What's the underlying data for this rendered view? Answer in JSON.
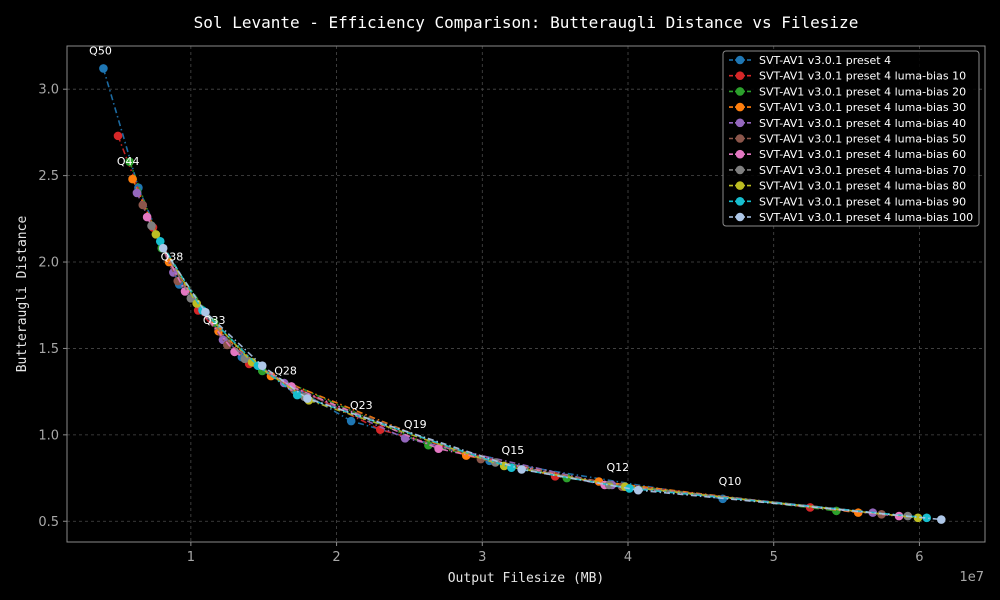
{
  "chart_data": {
    "type": "line",
    "title": "Sol Levante - Efficiency Comparison: Butteraugli Distance vs Filesize",
    "xlabel": "Output Filesize (MB)",
    "ylabel": "Butteraugli Distance",
    "x_scale_label": "1e7",
    "xlim": [
      1500000,
      64500000
    ],
    "ylim": [
      0.38,
      3.25
    ],
    "x_ticks": [
      10000000,
      20000000,
      30000000,
      40000000,
      50000000,
      60000000
    ],
    "x_tick_labels": [
      "1",
      "2",
      "3",
      "4",
      "5",
      "6"
    ],
    "y_ticks": [
      0.5,
      1.0,
      1.5,
      2.0,
      2.5,
      3.0
    ],
    "y_tick_labels": [
      "0.5",
      "1.0",
      "1.5",
      "2.0",
      "2.5",
      "3.0"
    ],
    "grid": true,
    "legend_position": "top-right",
    "series": [
      {
        "name": "SVT-AV1 v3.0.1 preset 4",
        "color": "#1f77b4",
        "x": [
          4000000,
          6400000,
          9200000,
          13500000,
          21000000,
          30500000,
          46500000
        ],
        "y": [
          3.12,
          2.43,
          1.87,
          1.45,
          1.08,
          0.85,
          0.63
        ]
      },
      {
        "name": "SVT-AV1 v3.0.1 preset 4 luma-bias 10",
        "color": "#d62728",
        "x": [
          5000000,
          7400000,
          10500000,
          14000000,
          23000000,
          35000000,
          52500000
        ],
        "y": [
          2.73,
          2.2,
          1.72,
          1.41,
          1.03,
          0.76,
          0.58
        ]
      },
      {
        "name": "SVT-AV1 v3.0.1 preset 4 luma-bias 20",
        "color": "#2ca02c",
        "x": [
          5800000,
          8000000,
          11600000,
          14900000,
          26300000,
          35800000,
          54300000
        ],
        "y": [
          2.58,
          2.08,
          1.65,
          1.37,
          0.94,
          0.75,
          0.56
        ]
      },
      {
        "name": "SVT-AV1 v3.0.1 preset 4 luma-bias 30",
        "color": "#ff7f0e",
        "x": [
          6000000,
          8500000,
          11900000,
          15500000,
          28900000,
          38000000,
          55800000
        ],
        "y": [
          2.48,
          2.0,
          1.6,
          1.34,
          0.88,
          0.73,
          0.55
        ]
      },
      {
        "name": "SVT-AV1 v3.0.1 preset 4 luma-bias 40",
        "color": "#9467bd",
        "x": [
          6300000,
          8800000,
          12200000,
          16400000,
          24700000,
          38900000,
          56800000
        ],
        "y": [
          2.4,
          1.94,
          1.55,
          1.3,
          0.98,
          0.71,
          0.55
        ]
      },
      {
        "name": "SVT-AV1 v3.0.1 preset 4 luma-bias 50",
        "color": "#8c564b",
        "x": [
          6700000,
          9100000,
          12500000,
          17100000,
          29900000,
          39600000,
          57400000
        ],
        "y": [
          2.33,
          1.89,
          1.52,
          1.26,
          0.86,
          0.7,
          0.54
        ]
      },
      {
        "name": "SVT-AV1 v3.0.1 preset 4 luma-bias 60",
        "color": "#e377c2",
        "x": [
          7000000,
          9600000,
          13000000,
          16900000,
          27000000,
          38400000,
          58600000
        ],
        "y": [
          2.26,
          1.83,
          1.48,
          1.28,
          0.92,
          0.71,
          0.53
        ]
      },
      {
        "name": "SVT-AV1 v3.0.1 preset 4 luma-bias 70",
        "color": "#7f7f7f",
        "x": [
          7300000,
          10000000,
          13700000,
          17800000,
          30900000,
          38700000,
          59200000
        ],
        "y": [
          2.21,
          1.79,
          1.44,
          1.22,
          0.84,
          0.71,
          0.53
        ]
      },
      {
        "name": "SVT-AV1 v3.0.1 preset 4 luma-bias 80",
        "color": "#bcbd22",
        "x": [
          7600000,
          10400000,
          14200000,
          18100000,
          31500000,
          39800000,
          59900000
        ],
        "y": [
          2.16,
          1.76,
          1.42,
          1.2,
          0.82,
          0.7,
          0.52
        ]
      },
      {
        "name": "SVT-AV1 v3.0.1 preset 4 luma-bias 90",
        "color": "#17becf",
        "x": [
          7900000,
          10800000,
          14600000,
          17300000,
          32000000,
          40100000,
          60500000
        ],
        "y": [
          2.12,
          1.72,
          1.4,
          1.23,
          0.81,
          0.69,
          0.52
        ]
      },
      {
        "name": "SVT-AV1 v3.0.1 preset 4 luma-bias 100",
        "color": "#aec7e8",
        "x": [
          8100000,
          11000000,
          14900000,
          18000000,
          32700000,
          40700000,
          61500000
        ],
        "y": [
          2.08,
          1.71,
          1.4,
          1.21,
          0.8,
          0.68,
          0.51
        ]
      }
    ],
    "annotations": [
      {
        "text": "Q50",
        "x": 3800000,
        "y": 3.2
      },
      {
        "text": "Q44",
        "x": 5700000,
        "y": 2.56
      },
      {
        "text": "Q38",
        "x": 8700000,
        "y": 2.01
      },
      {
        "text": "Q33",
        "x": 11600000,
        "y": 1.64
      },
      {
        "text": "Q28",
        "x": 16500000,
        "y": 1.35
      },
      {
        "text": "Q23",
        "x": 21700000,
        "y": 1.15
      },
      {
        "text": "Q19",
        "x": 25400000,
        "y": 1.04
      },
      {
        "text": "Q15",
        "x": 32100000,
        "y": 0.89
      },
      {
        "text": "Q12",
        "x": 39300000,
        "y": 0.79
      },
      {
        "text": "Q10",
        "x": 47000000,
        "y": 0.71
      }
    ]
  }
}
